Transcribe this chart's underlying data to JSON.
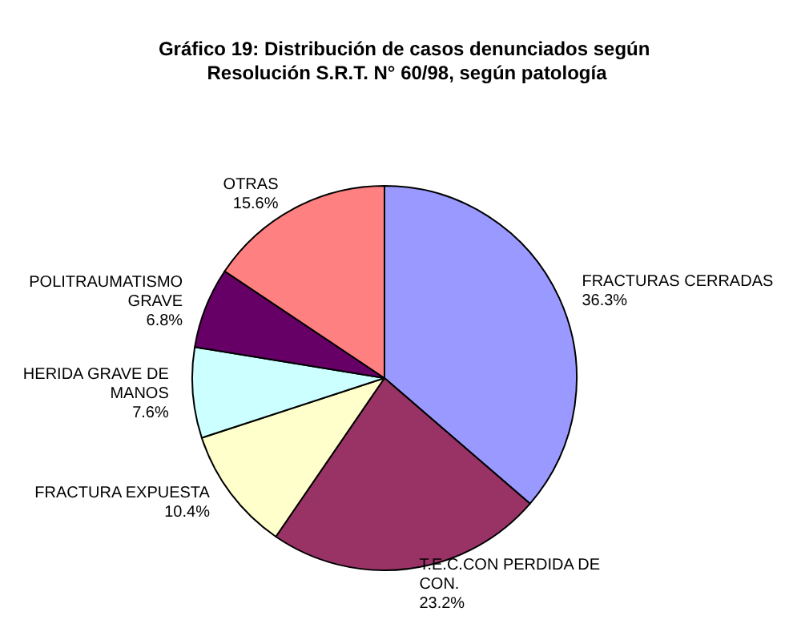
{
  "chart_data": {
    "type": "pie",
    "title": "Gráfico 19: Distribución de casos denunciados según Resolución S.R.T. N° 60/98, según patología",
    "categories": [
      "FRACTURAS CERRADAS",
      "T.E.C.CON PERDIDA DE CON.",
      "FRACTURA EXPUESTA",
      "HERIDA GRAVE DE MANOS",
      "POLITRAUMATISMO GRAVE",
      "OTRAS"
    ],
    "values": [
      36.3,
      23.2,
      10.4,
      7.6,
      6.8,
      15.6
    ],
    "value_labels": [
      "36.3%",
      "23.2%",
      "10.4%",
      "7.6%",
      "6.8%",
      "15.6%"
    ],
    "colors": [
      "#9999ff",
      "#993366",
      "#ffffcc",
      "#ccffff",
      "#660066",
      "#ff8080"
    ],
    "legend": false
  }
}
